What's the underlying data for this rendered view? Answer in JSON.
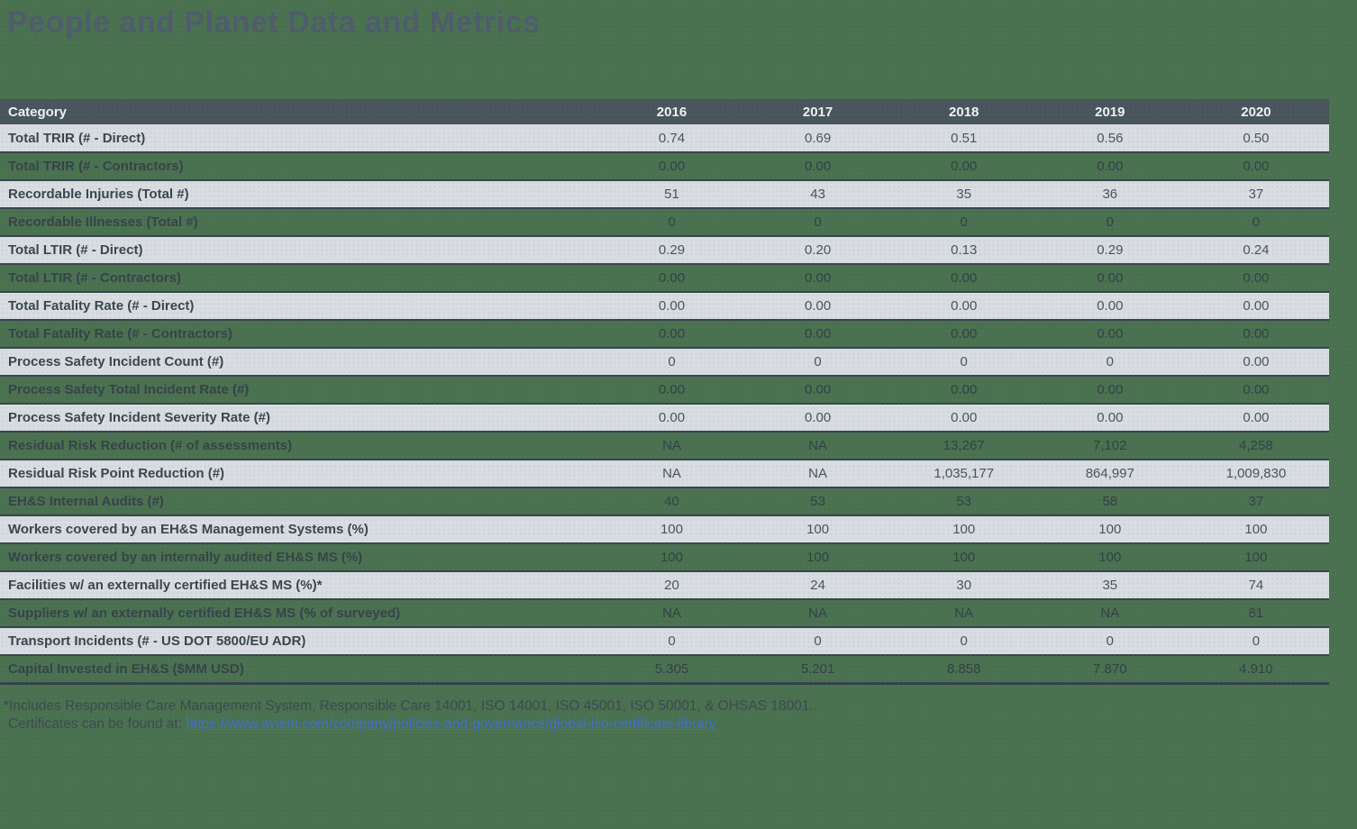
{
  "page": {
    "title": "People and Planet Data and Metrics"
  },
  "colors": {
    "background_green": "#4A714F",
    "header_bg": "#48555C",
    "header_text": "#F1F3F5",
    "row_light_bg": "#D9DDE2",
    "row_divider": "#36444E",
    "label_text": "#39454E",
    "value_text": "#4A535B",
    "title_text": "#4E5C6B",
    "link_blue": "#3E6ED2"
  },
  "table": {
    "category_header": "Category",
    "years": [
      "2016",
      "2017",
      "2018",
      "2019",
      "2020"
    ],
    "rows": [
      {
        "label": "Total TRIR (# - Direct)",
        "values": [
          "0.74",
          "0.69",
          "0.51",
          "0.56",
          "0.50"
        ]
      },
      {
        "label": "Total TRIR (# - Contractors)",
        "values": [
          "0.00",
          "0.00",
          "0.00",
          "0.00",
          "0.00"
        ]
      },
      {
        "label": "Recordable Injuries (Total #)",
        "values": [
          "51",
          "43",
          "35",
          "36",
          "37"
        ]
      },
      {
        "label": "Recordable Illnesses (Total #)",
        "values": [
          "0",
          "0",
          "0",
          "0",
          "0"
        ]
      },
      {
        "label": "Total LTIR (# - Direct)",
        "values": [
          "0.29",
          "0.20",
          "0.13",
          "0.29",
          "0.24"
        ]
      },
      {
        "label": "Total LTIR (# - Contractors)",
        "values": [
          "0.00",
          "0.00",
          "0.00",
          "0.00",
          "0.00"
        ]
      },
      {
        "label": "Total Fatality Rate (# - Direct)",
        "values": [
          "0.00",
          "0.00",
          "0.00",
          "0.00",
          "0.00"
        ]
      },
      {
        "label": "Total Fatality Rate (# - Contractors)",
        "values": [
          "0.00",
          "0.00",
          "0.00",
          "0.00",
          "0.00"
        ]
      },
      {
        "label": "Process Safety Incident Count (#)",
        "values": [
          "0",
          "0",
          "0",
          "0",
          "0.00"
        ]
      },
      {
        "label": "Process Safety Total Incident Rate (#)",
        "values": [
          "0.00",
          "0.00",
          "0.00",
          "0.00",
          "0.00"
        ]
      },
      {
        "label": "Process Safety Incident Severity Rate (#)",
        "values": [
          "0.00",
          "0.00",
          "0.00",
          "0.00",
          "0.00"
        ]
      },
      {
        "label": "Residual Risk Reduction (# of assessments)",
        "values": [
          "NA",
          "NA",
          "13,267",
          "7,102",
          "4,258"
        ]
      },
      {
        "label": "Residual Risk Point Reduction (#)",
        "values": [
          "NA",
          "NA",
          "1,035,177",
          "864,997",
          "1,009,830"
        ]
      },
      {
        "label": "EH&S Internal Audits (#)",
        "values": [
          "40",
          "53",
          "53",
          "58",
          "37"
        ]
      },
      {
        "label": "Workers covered by an EH&S Management Systems (%)",
        "values": [
          "100",
          "100",
          "100",
          "100",
          "100"
        ]
      },
      {
        "label": "Workers covered by an internally audited EH&S MS (%)",
        "values": [
          "100",
          "100",
          "100",
          "100",
          "100"
        ]
      },
      {
        "label": "Facilities w/ an externally certified EH&S MS (%)*",
        "values": [
          "20",
          "24",
          "30",
          "35",
          "74"
        ]
      },
      {
        "label": "Suppliers w/ an externally certified EH&S MS (% of surveyed)",
        "values": [
          "NA",
          "NA",
          "NA",
          "NA",
          "81"
        ]
      },
      {
        "label": "Transport Incidents (# - US DOT 5800/EU ADR)",
        "values": [
          "0",
          "0",
          "0",
          "0",
          "0"
        ]
      },
      {
        "label": "Capital Invested in EH&S ($MM USD)",
        "values": [
          "5.305",
          "5.201",
          "8.858",
          "7.870",
          "4.910"
        ]
      }
    ]
  },
  "footnote": {
    "line1": "*Includes Responsible Care Management System, Responsible Care 14001, ISO 14001, ISO 45001, ISO 50001, & OHSAS 18001..",
    "line2_prefix": "Certificates can be found at: ",
    "link_text": "https://www.avient.com/company/policies-and-governance/global-iso-certificate-library"
  },
  "chart_data": {
    "type": "table",
    "title": "People and Planet Data and Metrics",
    "columns": [
      "Category",
      "2016",
      "2017",
      "2018",
      "2019",
      "2020"
    ],
    "rows": [
      [
        "Total TRIR (# - Direct)",
        "0.74",
        "0.69",
        "0.51",
        "0.56",
        "0.50"
      ],
      [
        "Total TRIR (# - Contractors)",
        "0.00",
        "0.00",
        "0.00",
        "0.00",
        "0.00"
      ],
      [
        "Recordable Injuries (Total #)",
        "51",
        "43",
        "35",
        "36",
        "37"
      ],
      [
        "Recordable Illnesses (Total #)",
        "0",
        "0",
        "0",
        "0",
        "0"
      ],
      [
        "Total LTIR (# - Direct)",
        "0.29",
        "0.20",
        "0.13",
        "0.29",
        "0.24"
      ],
      [
        "Total LTIR (# - Contractors)",
        "0.00",
        "0.00",
        "0.00",
        "0.00",
        "0.00"
      ],
      [
        "Total Fatality Rate (# - Direct)",
        "0.00",
        "0.00",
        "0.00",
        "0.00",
        "0.00"
      ],
      [
        "Total Fatality Rate (# - Contractors)",
        "0.00",
        "0.00",
        "0.00",
        "0.00",
        "0.00"
      ],
      [
        "Process Safety Incident Count (#)",
        "0",
        "0",
        "0",
        "0",
        "0.00"
      ],
      [
        "Process Safety Total Incident Rate (#)",
        "0.00",
        "0.00",
        "0.00",
        "0.00",
        "0.00"
      ],
      [
        "Process Safety Incident Severity Rate (#)",
        "0.00",
        "0.00",
        "0.00",
        "0.00",
        "0.00"
      ],
      [
        "Residual Risk Reduction (# of assessments)",
        "NA",
        "NA",
        "13,267",
        "7,102",
        "4,258"
      ],
      [
        "Residual Risk Point Reduction (#)",
        "NA",
        "NA",
        "1,035,177",
        "864,997",
        "1,009,830"
      ],
      [
        "EH&S Internal Audits (#)",
        "40",
        "53",
        "53",
        "58",
        "37"
      ],
      [
        "Workers covered by an EH&S Management Systems (%)",
        "100",
        "100",
        "100",
        "100",
        "100"
      ],
      [
        "Workers covered by an internally audited EH&S MS (%)",
        "100",
        "100",
        "100",
        "100",
        "100"
      ],
      [
        "Facilities w/ an externally certified EH&S MS (%)*",
        "20",
        "24",
        "30",
        "35",
        "74"
      ],
      [
        "Suppliers w/ an externally certified EH&S MS (% of surveyed)",
        "NA",
        "NA",
        "NA",
        "NA",
        "81"
      ],
      [
        "Transport Incidents (# - US DOT 5800/EU ADR)",
        "0",
        "0",
        "0",
        "0",
        "0"
      ],
      [
        "Capital Invested in EH&S ($MM USD)",
        "5.305",
        "5.201",
        "8.858",
        "7.870",
        "4.910"
      ]
    ]
  }
}
